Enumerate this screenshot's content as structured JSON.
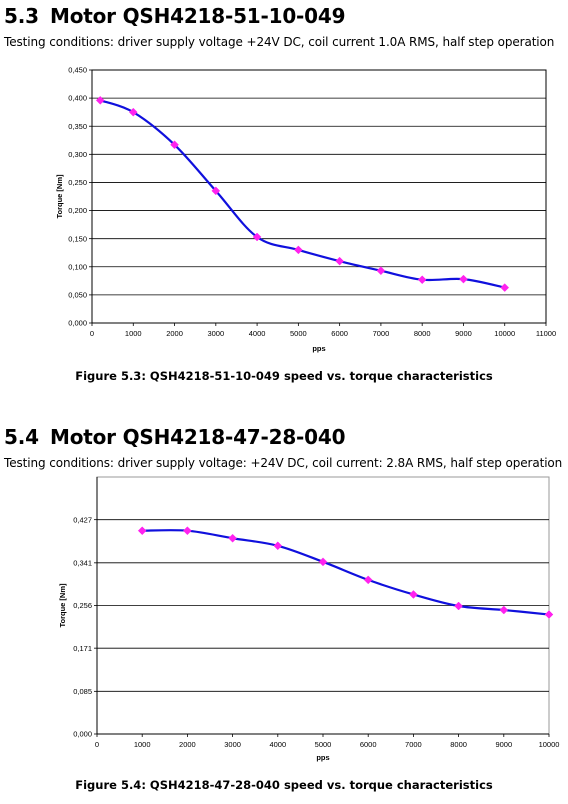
{
  "sections": [
    {
      "number": "5.3",
      "title": "Motor QSH4218-51-10-049",
      "conditions": "Testing conditions: driver supply voltage +24V DC, coil current 1.0A RMS, half step operation",
      "caption": "Figure 5.3: QSH4218-51-10-049 speed vs. torque characteristics"
    },
    {
      "number": "5.4",
      "title": "Motor QSH4218-47-28-040",
      "conditions": "Testing conditions: driver supply voltage: +24V DC, coil current: 2.8A RMS, half step operation",
      "caption": "Figure 5.4: QSH4218-47-28-040 speed vs. torque characteristics"
    }
  ],
  "chart_data": [
    {
      "type": "line",
      "title": "",
      "xlabel": "pps",
      "ylabel": "Torque  [Nm]",
      "xlim": [
        0,
        11000
      ],
      "ylim": [
        0,
        0.45
      ],
      "x_ticks": [
        "0",
        "1000",
        "2000",
        "3000",
        "4000",
        "5000",
        "6000",
        "7000",
        "8000",
        "9000",
        "10000",
        "11000"
      ],
      "y_ticks": [
        "0,000",
        "0,050",
        "0,100",
        "0,150",
        "0,200",
        "0,250",
        "0,300",
        "0,350",
        "0,400",
        "0,450"
      ],
      "grid": true,
      "line_color": "#1010dd",
      "marker_color": "#ff22ee",
      "series": [
        {
          "x": [
            200,
            1000,
            2000,
            3000,
            4000,
            5000,
            6000,
            7000,
            8000,
            9000,
            10000
          ],
          "y": [
            0.396,
            0.375,
            0.317,
            0.235,
            0.153,
            0.13,
            0.11,
            0.093,
            0.077,
            0.078,
            0.063
          ]
        }
      ]
    },
    {
      "type": "line",
      "title": "",
      "xlabel": "pps",
      "ylabel": "Torque  [Nm]",
      "xlim": [
        0,
        10000
      ],
      "ylim": [
        0,
        0.512
      ],
      "x_ticks": [
        "0",
        "1000",
        "2000",
        "3000",
        "4000",
        "5000",
        "6000",
        "7000",
        "8000",
        "9000",
        "10000"
      ],
      "y_ticks": [
        "0,000",
        "0,085",
        "0,171",
        "0,256",
        "0,341",
        "0,427"
      ],
      "y_tick_values": [
        0,
        0.085,
        0.171,
        0.256,
        0.341,
        0.427
      ],
      "grid": true,
      "line_color": "#1010dd",
      "marker_color": "#ff22ee",
      "series": [
        {
          "x": [
            1000,
            2000,
            3000,
            4000,
            5000,
            6000,
            7000,
            8000,
            9000,
            10000
          ],
          "y": [
            0.405,
            0.405,
            0.39,
            0.375,
            0.343,
            0.307,
            0.278,
            0.255,
            0.247,
            0.238
          ]
        }
      ]
    }
  ]
}
